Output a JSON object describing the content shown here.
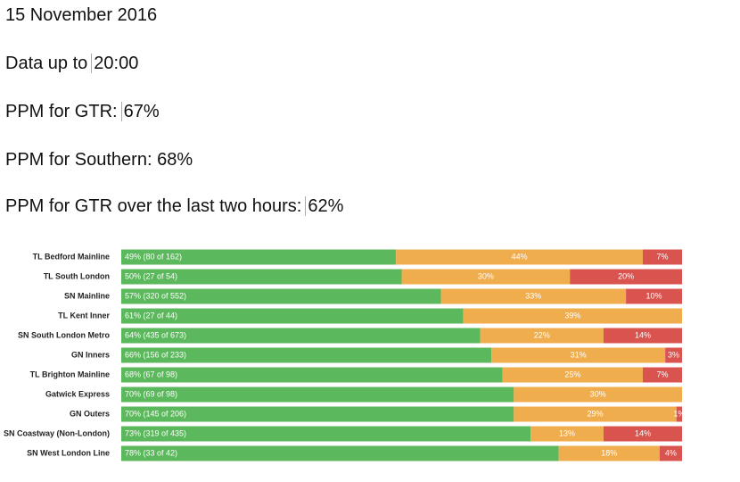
{
  "header": {
    "date": "15 November 2016",
    "data_up_to": {
      "label": "Data up to",
      "value": "20:00"
    },
    "ppm_gtr": {
      "label": "PPM for GTR:",
      "value": "67%"
    },
    "ppm_southern": "PPM for Southern: 68%",
    "ppm_gtr_two_hours": {
      "label": "PPM for GTR over the last two hours:",
      "value": "62%"
    }
  },
  "chart_data": {
    "type": "stacked-bar-horizontal",
    "categories": [
      "TL Bedford Mainline",
      "TL South London",
      "SN Mainline",
      "TL Kent Inner",
      "SN South London Metro",
      "GN Inners",
      "TL Brighton Mainline",
      "Gatwick Express",
      "GN Outers",
      "SN Coastway (Non-London)",
      "SN West London Line"
    ],
    "series": [
      {
        "color": "#5cb85c",
        "values": [
          49,
          50,
          57,
          61,
          64,
          66,
          68,
          70,
          70,
          73,
          78
        ],
        "value_labels": [
          "49% (80 of 162)",
          "50% (27 of 54)",
          "57% (320 of 552)",
          "61% (27 of 44)",
          "64% (435 of 673)",
          "66% (156 of 233)",
          "68% (67 of 98)",
          "70% (69 of 98)",
          "70% (145 of 206)",
          "73% (319 of 435)",
          "78% (33 of 42)"
        ]
      },
      {
        "color": "#f0ad4e",
        "values": [
          44,
          30,
          33,
          39,
          22,
          31,
          25,
          30,
          29,
          13,
          18
        ],
        "value_labels": [
          "44%",
          "30%",
          "33%",
          "39%",
          "22%",
          "31%",
          "25%",
          "30%",
          "29%",
          "13%",
          "18%"
        ]
      },
      {
        "color": "#d9534f",
        "values": [
          7,
          20,
          10,
          null,
          14,
          3,
          7,
          null,
          1,
          14,
          4
        ],
        "value_labels": [
          "7%",
          "20%",
          "10%",
          null,
          "14%",
          "3%",
          "7%",
          null,
          "1%",
          "14%",
          "4%"
        ]
      }
    ],
    "xlim": [
      0,
      100
    ]
  }
}
